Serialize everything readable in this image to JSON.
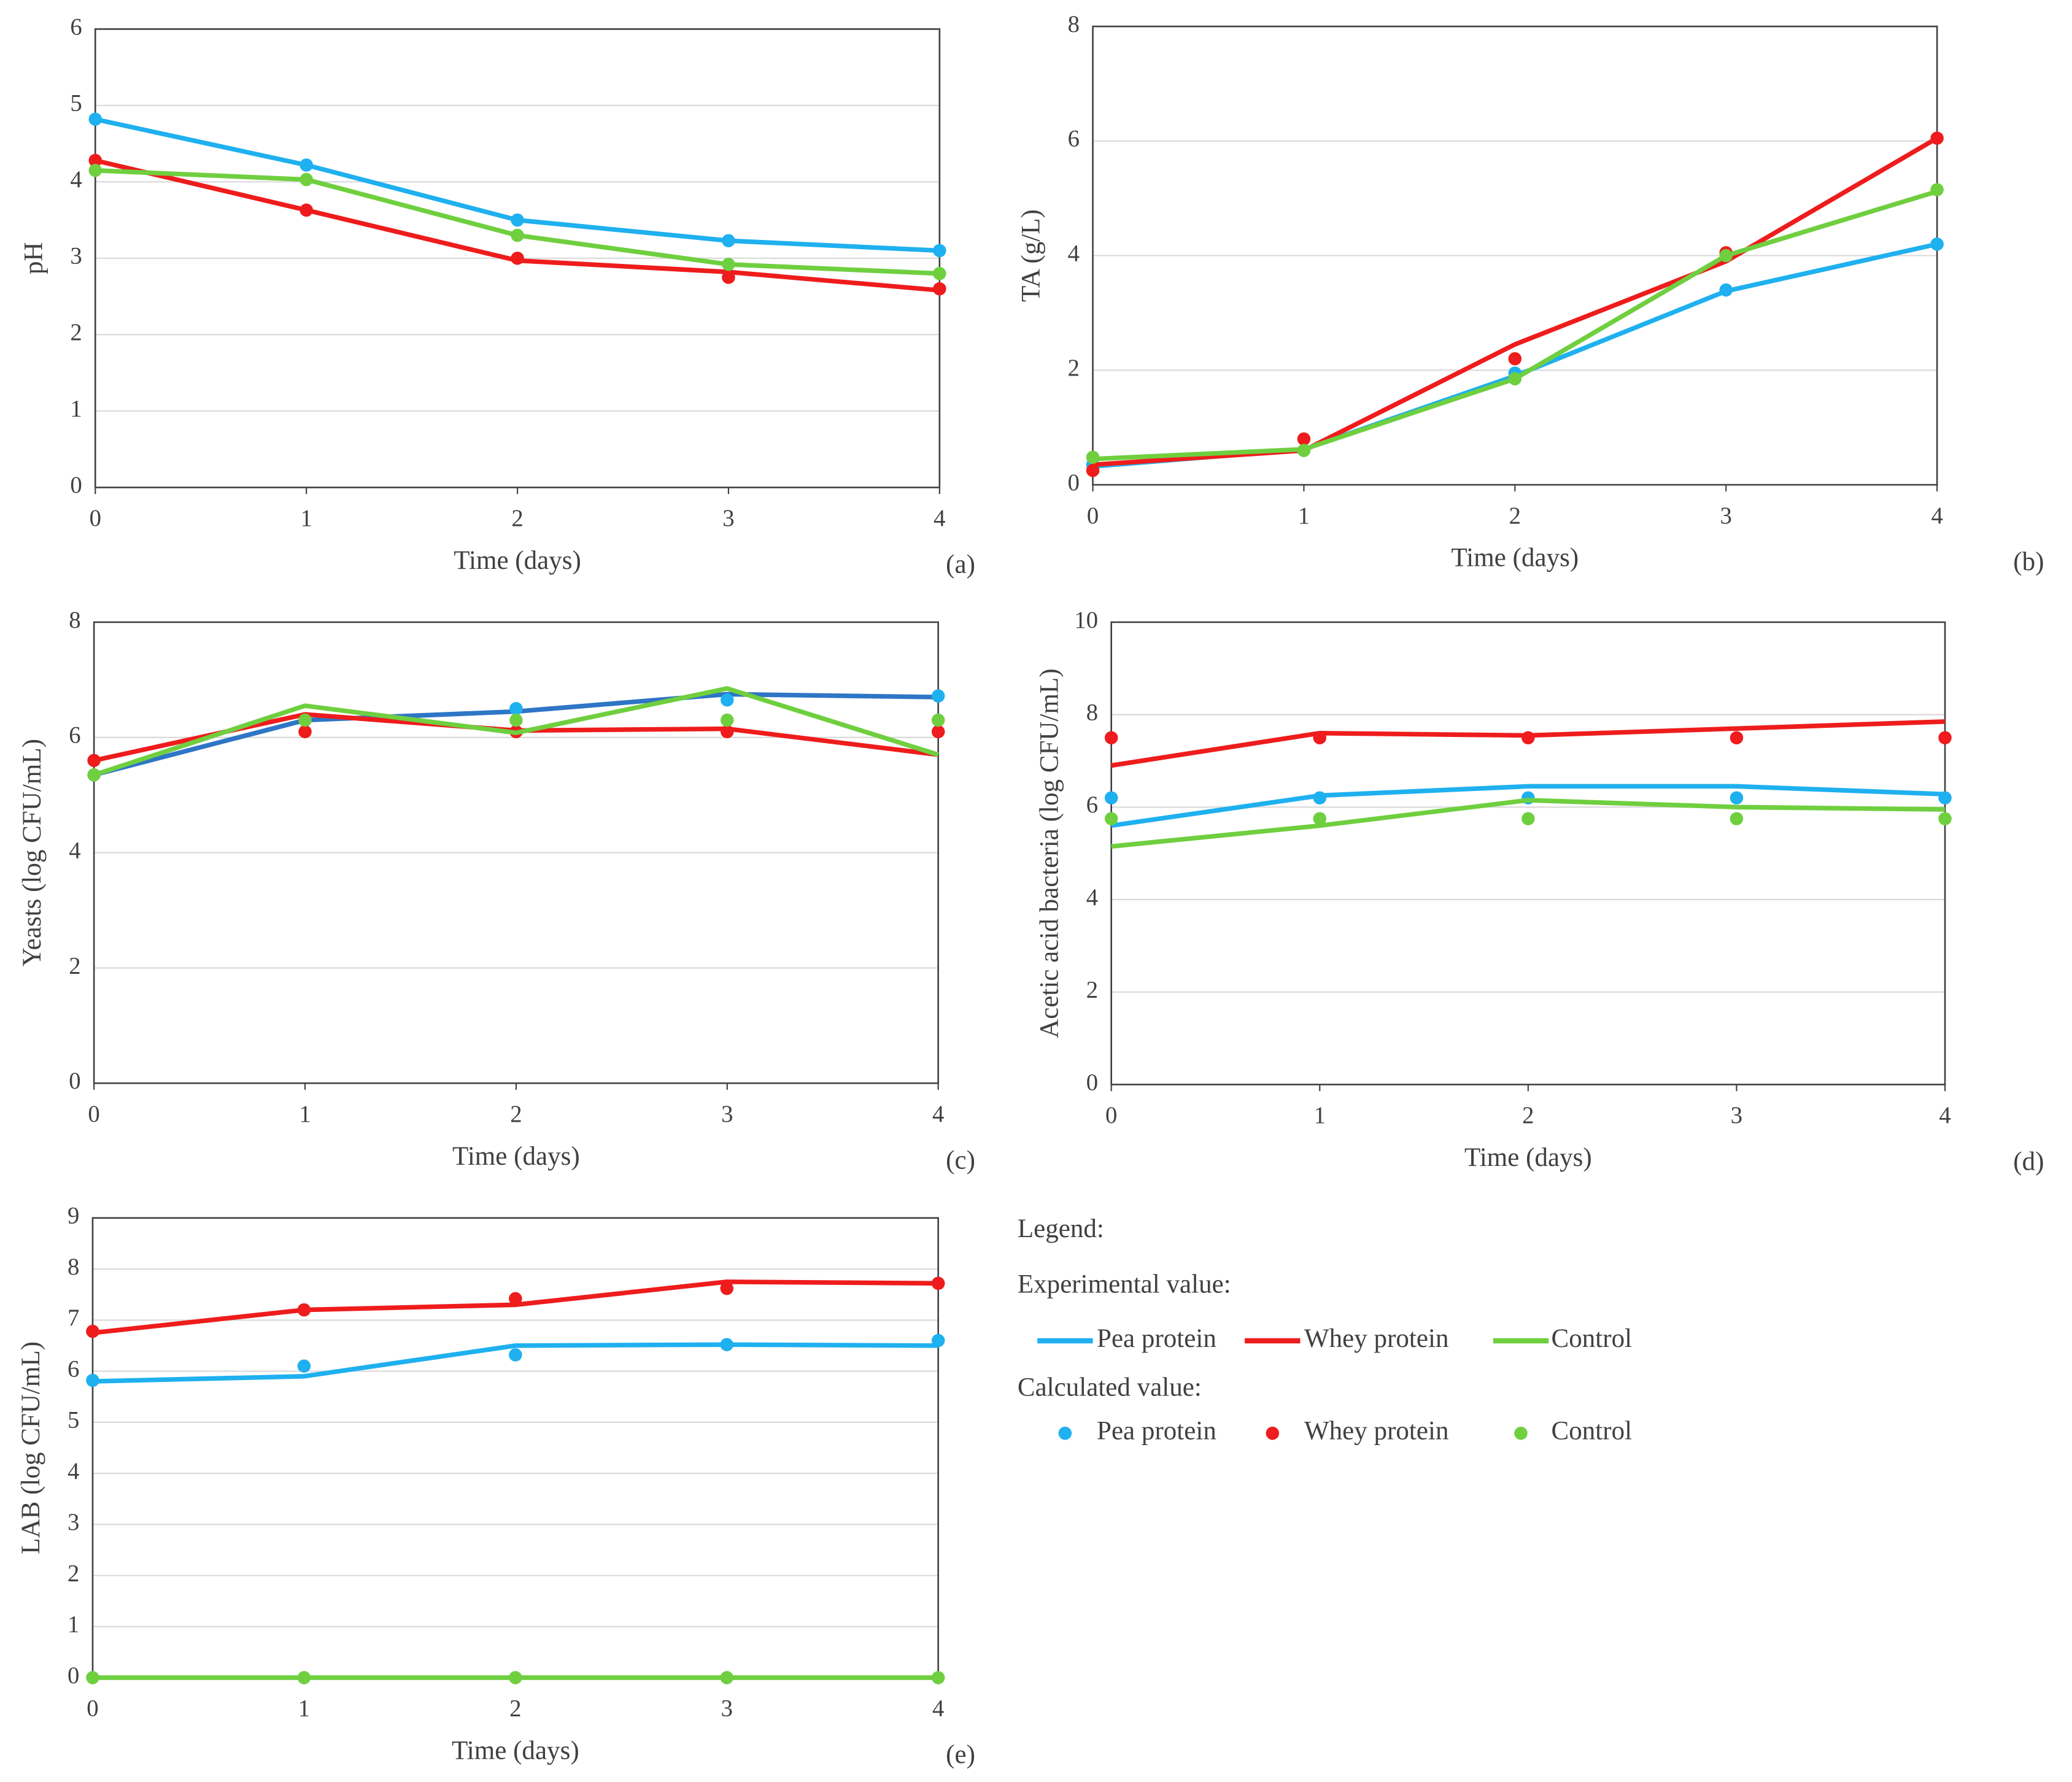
{
  "chart_data": [
    {
      "type": "line",
      "xlabel": "Time (days)",
      "ylabel": "pH",
      "panel_label": "(a)",
      "x": [
        0,
        1,
        2,
        3,
        4
      ],
      "xlim": [
        0,
        4
      ],
      "xticks": [
        0,
        1,
        2,
        3,
        4
      ],
      "ylim": [
        0,
        6
      ],
      "yticks": [
        0,
        1,
        2,
        3,
        4,
        5,
        6
      ],
      "grid": true,
      "series": [
        {
          "name": "Pea protein",
          "color": "#1fb0ef",
          "values": [
            4.82,
            4.22,
            3.5,
            3.23,
            3.1
          ],
          "calculated": [
            4.82,
            4.22,
            3.5,
            3.23,
            3.1
          ]
        },
        {
          "name": "Whey protein",
          "color": "#ee1c1c",
          "values": [
            4.28,
            3.63,
            2.97,
            2.82,
            2.58
          ],
          "calculated": [
            4.28,
            3.63,
            3.0,
            2.75,
            2.6
          ]
        },
        {
          "name": "Control",
          "color": "#6fcf3f",
          "values": [
            4.15,
            4.03,
            3.3,
            2.92,
            2.8
          ],
          "calculated": [
            4.15,
            4.03,
            3.3,
            2.92,
            2.8
          ]
        }
      ]
    },
    {
      "type": "line",
      "xlabel": "Time (days)",
      "ylabel": "TA (g/L)",
      "panel_label": "(b)",
      "x": [
        0,
        1,
        2,
        3,
        4
      ],
      "xlim": [
        0,
        4
      ],
      "xticks": [
        0,
        1,
        2,
        3,
        4
      ],
      "ylim": [
        0,
        8
      ],
      "yticks": [
        0,
        2,
        4,
        6,
        8
      ],
      "grid": true,
      "series": [
        {
          "name": "Pea protein",
          "color": "#1fb0ef",
          "values": [
            0.32,
            0.62,
            1.9,
            3.38,
            4.2
          ],
          "calculated": [
            0.35,
            0.6,
            1.95,
            3.4,
            4.2
          ]
        },
        {
          "name": "Whey protein",
          "color": "#ee1c1c",
          "values": [
            0.35,
            0.6,
            2.45,
            3.9,
            6.05
          ],
          "calculated": [
            0.25,
            0.8,
            2.2,
            4.05,
            6.05
          ]
        },
        {
          "name": "Control",
          "color": "#6fcf3f",
          "values": [
            0.45,
            0.62,
            1.85,
            4.0,
            5.12
          ],
          "calculated": [
            0.48,
            0.6,
            1.85,
            4.0,
            5.15
          ]
        }
      ]
    },
    {
      "type": "line",
      "xlabel": "Time (days)",
      "ylabel": "Yeasts (log CFU/mL)",
      "panel_label": "(c)",
      "x": [
        0,
        1,
        2,
        3,
        4
      ],
      "xlim": [
        0,
        4
      ],
      "xticks": [
        0,
        1,
        2,
        3,
        4
      ],
      "ylim": [
        0,
        8
      ],
      "yticks": [
        0,
        2,
        4,
        6,
        8
      ],
      "grid": true,
      "series": [
        {
          "name": "Pea protein",
          "color": "#2e75c6",
          "marker_color": "#1fb0ef",
          "values": [
            5.35,
            6.3,
            6.45,
            6.75,
            6.7
          ],
          "calculated": [
            5.35,
            6.3,
            6.5,
            6.65,
            6.72
          ]
        },
        {
          "name": "Whey protein",
          "color": "#ee1c1c",
          "values": [
            5.6,
            6.4,
            6.12,
            6.15,
            5.7
          ],
          "calculated": [
            5.6,
            6.1,
            6.1,
            6.1,
            6.1
          ]
        },
        {
          "name": "Control",
          "color": "#6fcf3f",
          "values": [
            5.35,
            6.55,
            6.08,
            6.85,
            5.7
          ],
          "calculated": [
            5.35,
            6.3,
            6.3,
            6.3,
            6.3
          ]
        }
      ]
    },
    {
      "type": "line",
      "xlabel": "Time (days)",
      "ylabel": "Acetic acid bacteria (log CFU/mL)",
      "panel_label": "(d)",
      "x": [
        0,
        1,
        2,
        3,
        4
      ],
      "xlim": [
        0,
        4
      ],
      "xticks": [
        0,
        1,
        2,
        3,
        4
      ],
      "ylim": [
        0,
        10
      ],
      "yticks": [
        0,
        2,
        4,
        6,
        8,
        10
      ],
      "grid": true,
      "series": [
        {
          "name": "Pea protein",
          "color": "#1fb0ef",
          "values": [
            5.6,
            6.25,
            6.45,
            6.45,
            6.28
          ],
          "calculated": [
            6.2,
            6.2,
            6.2,
            6.2,
            6.2
          ]
        },
        {
          "name": "Whey protein",
          "color": "#ee1c1c",
          "values": [
            6.9,
            7.6,
            7.55,
            7.7,
            7.85
          ],
          "calculated": [
            7.5,
            7.5,
            7.5,
            7.5,
            7.5
          ]
        },
        {
          "name": "Control",
          "color": "#6fcf3f",
          "values": [
            5.15,
            5.6,
            6.15,
            6.0,
            5.95
          ],
          "calculated": [
            5.75,
            5.75,
            5.75,
            5.75,
            5.75
          ]
        }
      ]
    },
    {
      "type": "line",
      "xlabel": "Time (days)",
      "ylabel": "LAB (log CFU/mL)",
      "panel_label": "(e)",
      "x": [
        0,
        1,
        2,
        3,
        4
      ],
      "xlim": [
        0,
        4
      ],
      "xticks": [
        0,
        1,
        2,
        3,
        4
      ],
      "ylim": [
        0,
        9
      ],
      "yticks": [
        0,
        1,
        2,
        3,
        4,
        5,
        6,
        7,
        8,
        9
      ],
      "grid": true,
      "series": [
        {
          "name": "Pea protein",
          "color": "#1fb0ef",
          "values": [
            5.8,
            5.9,
            6.5,
            6.52,
            6.5
          ],
          "calculated": [
            5.82,
            6.1,
            6.32,
            6.52,
            6.6
          ]
        },
        {
          "name": "Whey protein",
          "color": "#ee1c1c",
          "values": [
            6.75,
            7.2,
            7.3,
            7.75,
            7.72
          ],
          "calculated": [
            6.78,
            7.2,
            7.42,
            7.62,
            7.72
          ]
        },
        {
          "name": "Control",
          "color": "#6fcf3f",
          "values": [
            0,
            0,
            0,
            0,
            0
          ],
          "calculated": [
            0,
            0,
            0,
            0,
            0
          ]
        }
      ]
    }
  ],
  "legend": {
    "title": "Legend:",
    "experimental_label": "Experimental value:",
    "calculated_label": "Calculated value:"
  }
}
